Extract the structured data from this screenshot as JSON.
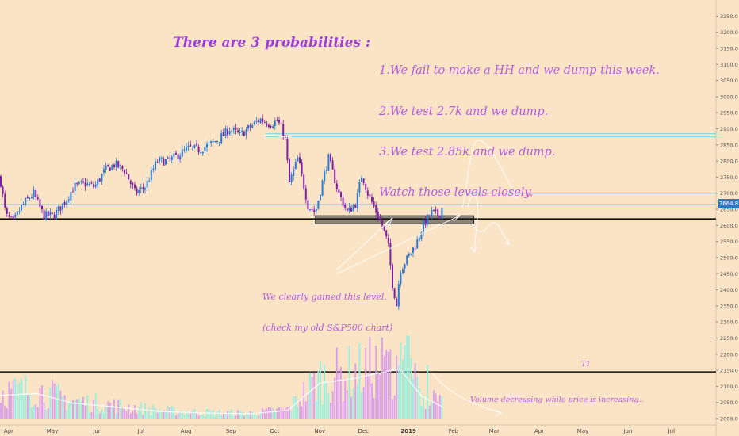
{
  "annotations": {
    "title": "There are 3 probabilities :",
    "list": [
      "1.We fail to make a HH and we dump this week.",
      "2.We test 2.7k and we dump.",
      "3.We test 2.85k and we dump.",
      "Watch those levels closely."
    ],
    "gain_note": [
      "We clearly gained this level.",
      "(check my old S&P500 chart)"
    ],
    "volume_note": "Volume decreasing while price is increasing..",
    "t1_label": "T1"
  },
  "price_tag": "2664.8",
  "colors": {
    "background": "#fbe3c5",
    "candle_up": "#2c7bd0",
    "candle_down": "#7e1fa3",
    "vol_up": "#8ef0e0",
    "vol_down": "#d99af0",
    "level_line": "#7ad6e6",
    "annotation": "#b25ce0"
  },
  "chart_data": {
    "type": "candlestick",
    "title": "",
    "xlabel": "",
    "ylabel": "",
    "x_ticks": [
      "Apr",
      "May",
      "Jun",
      "Jul",
      "Aug",
      "Sep",
      "Oct",
      "Nov",
      "Dec",
      "2019",
      "Feb",
      "Mar",
      "Apr",
      "May",
      "Jun",
      "Jul"
    ],
    "y_ticks": [
      2000,
      2050,
      2100,
      2150,
      2200,
      2250,
      2300,
      2350,
      2400,
      2450,
      2500,
      2550,
      2600,
      2650,
      2700,
      2750,
      2800,
      2850,
      2900,
      2950,
      3000,
      3050,
      3100,
      3150,
      3200,
      3250
    ],
    "ylim": [
      1990,
      3290
    ],
    "price_close_path": [
      [
        "2018-03-26",
        2750
      ],
      [
        "2018-03-30",
        2630
      ],
      [
        "2018-04-04",
        2610
      ],
      [
        "2018-04-10",
        2660
      ],
      [
        "2018-04-18",
        2700
      ],
      [
        "2018-04-25",
        2630
      ],
      [
        "2018-05-02",
        2630
      ],
      [
        "2018-05-09",
        2670
      ],
      [
        "2018-05-16",
        2720
      ],
      [
        "2018-05-23",
        2730
      ],
      [
        "2018-05-30",
        2720
      ],
      [
        "2018-06-06",
        2770
      ],
      [
        "2018-06-13",
        2790
      ],
      [
        "2018-06-20",
        2770
      ],
      [
        "2018-06-27",
        2700
      ],
      [
        "2018-07-04",
        2720
      ],
      [
        "2018-07-12",
        2800
      ],
      [
        "2018-07-20",
        2800
      ],
      [
        "2018-07-27",
        2820
      ],
      [
        "2018-08-03",
        2840
      ],
      [
        "2018-08-10",
        2835
      ],
      [
        "2018-08-17",
        2850
      ],
      [
        "2018-08-24",
        2870
      ],
      [
        "2018-08-31",
        2900
      ],
      [
        "2018-09-07",
        2880
      ],
      [
        "2018-09-14",
        2905
      ],
      [
        "2018-09-21",
        2930
      ],
      [
        "2018-09-28",
        2915
      ],
      [
        "2018-10-03",
        2925
      ],
      [
        "2018-10-08",
        2880
      ],
      [
        "2018-10-11",
        2730
      ],
      [
        "2018-10-17",
        2810
      ],
      [
        "2018-10-24",
        2660
      ],
      [
        "2018-10-29",
        2640
      ],
      [
        "2018-11-02",
        2720
      ],
      [
        "2018-11-07",
        2810
      ],
      [
        "2018-11-14",
        2700
      ],
      [
        "2018-11-20",
        2640
      ],
      [
        "2018-11-26",
        2670
      ],
      [
        "2018-11-30",
        2760
      ],
      [
        "2018-12-04",
        2700
      ],
      [
        "2018-12-10",
        2640
      ],
      [
        "2018-12-14",
        2600
      ],
      [
        "2018-12-18",
        2540
      ],
      [
        "2018-12-21",
        2420
      ],
      [
        "2018-12-24",
        2350
      ],
      [
        "2018-12-26",
        2460
      ],
      [
        "2019-01-02",
        2510
      ],
      [
        "2019-01-07",
        2550
      ],
      [
        "2019-01-11",
        2600
      ],
      [
        "2019-01-17",
        2640
      ],
      [
        "2019-01-22",
        2630
      ],
      [
        "2019-01-25",
        2664.8
      ]
    ],
    "levels": [
      {
        "value": 2880,
        "style": "double cyan line"
      },
      {
        "value": 2700,
        "style": "cyan line"
      },
      {
        "value": 2664.8,
        "style": "blue last-price line"
      },
      {
        "value": 2620,
        "style": "black line"
      },
      {
        "value": 2145,
        "style": "black line"
      }
    ],
    "zone": {
      "from": "2018-10-29",
      "to": "2019-02-15",
      "low": 2605,
      "high": 2630
    },
    "volume_ma_path": [
      [
        "2018-03-26",
        2072
      ],
      [
        "2018-04-20",
        2078
      ],
      [
        "2018-05-15",
        2048
      ],
      [
        "2018-06-15",
        2035
      ],
      [
        "2018-07-15",
        2022
      ],
      [
        "2018-08-15",
        2017
      ],
      [
        "2018-09-15",
        2015
      ],
      [
        "2018-10-10",
        2025
      ],
      [
        "2018-11-01",
        2110
      ],
      [
        "2018-11-25",
        2125
      ],
      [
        "2018-12-26",
        2155
      ],
      [
        "2019-01-10",
        2070
      ],
      [
        "2019-01-25",
        2035
      ]
    ]
  }
}
